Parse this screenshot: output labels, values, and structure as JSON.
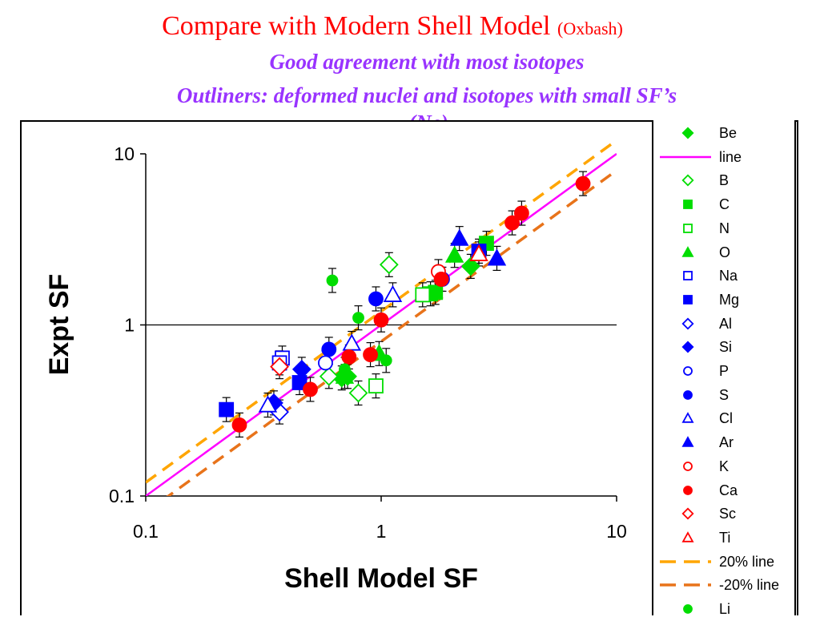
{
  "header": {
    "title": "Compare with Modern Shell Model",
    "title_small": "(Oxbash)",
    "sub1": "Good agreement with most isotopes",
    "sub2": "Outliners: deformed nuclei and isotopes with small SF’s",
    "sub3": "(Ne)"
  },
  "colors": {
    "title": "#ff0000",
    "subtitle": "#9933ff",
    "green": "#00dd00",
    "blue": "#0000ff",
    "red": "#ff0000",
    "line": "#ff00ff",
    "plus20": "#ffa500",
    "minus20": "#e8731a"
  },
  "chart_data": {
    "type": "scatter",
    "xscale": "log",
    "yscale": "log",
    "xlim": [
      0.1,
      10
    ],
    "ylim": [
      0.1,
      10
    ],
    "xlabel": "Shell Model SF",
    "ylabel": "Expt SF",
    "xticks": [
      "0.1",
      "1",
      "10"
    ],
    "yticks": [
      "0.1",
      "1",
      "10"
    ],
    "grid": "horizontal at 1",
    "legend_position": "right",
    "lines": [
      {
        "name": "line",
        "color": "#ff00ff",
        "dash": "none",
        "factor": 1.0
      },
      {
        "name": "20% line",
        "color": "#ffa500",
        "dash": "dashed",
        "factor": 1.2
      },
      {
        "name": "-20% line",
        "color": "#e8731a",
        "dash": "dashed",
        "factor": 0.8
      }
    ],
    "series": [
      {
        "name": "Be",
        "marker": "diamond",
        "filled": true,
        "color": "#00dd00",
        "points": [
          [
            0.72,
            0.5
          ],
          [
            0.68,
            0.49
          ],
          [
            2.4,
            2.2
          ]
        ]
      },
      {
        "name": "B",
        "marker": "diamond",
        "filled": false,
        "color": "#00dd00",
        "points": [
          [
            0.6,
            0.5
          ],
          [
            0.8,
            0.4
          ],
          [
            1.08,
            2.25
          ]
        ]
      },
      {
        "name": "C",
        "marker": "square",
        "filled": true,
        "color": "#00dd00",
        "points": [
          [
            1.7,
            1.55
          ],
          [
            2.8,
            3.0
          ],
          [
            1.62,
            1.52
          ]
        ]
      },
      {
        "name": "N",
        "marker": "square",
        "filled": false,
        "color": "#00dd00",
        "points": [
          [
            0.95,
            0.44
          ],
          [
            1.5,
            1.5
          ]
        ]
      },
      {
        "name": "O",
        "marker": "triangle",
        "filled": true,
        "color": "#00dd00",
        "points": [
          [
            0.7,
            0.5
          ],
          [
            0.98,
            0.68
          ],
          [
            2.05,
            2.55
          ]
        ]
      },
      {
        "name": "Na",
        "marker": "square",
        "filled": false,
        "color": "#0000ff",
        "points": [
          [
            0.38,
            0.64
          ],
          [
            0.37,
            0.6
          ]
        ]
      },
      {
        "name": "Mg",
        "marker": "square",
        "filled": true,
        "color": "#0000ff",
        "points": [
          [
            0.22,
            0.32
          ],
          [
            0.45,
            0.46
          ],
          [
            2.6,
            2.7
          ]
        ]
      },
      {
        "name": "Al",
        "marker": "diamond",
        "filled": false,
        "color": "#0000ff",
        "points": [
          [
            0.37,
            0.31
          ]
        ]
      },
      {
        "name": "Si",
        "marker": "diamond",
        "filled": true,
        "color": "#0000ff",
        "points": [
          [
            0.46,
            0.55
          ],
          [
            0.35,
            0.35
          ]
        ]
      },
      {
        "name": "P",
        "marker": "circle",
        "filled": false,
        "color": "#0000ff",
        "points": [
          [
            0.58,
            0.6
          ]
        ]
      },
      {
        "name": "S",
        "marker": "circle",
        "filled": true,
        "color": "#0000ff",
        "points": [
          [
            0.6,
            0.72
          ],
          [
            0.95,
            1.42
          ],
          [
            1.82,
            1.85
          ]
        ]
      },
      {
        "name": "Cl",
        "marker": "triangle",
        "filled": false,
        "color": "#0000ff",
        "points": [
          [
            0.33,
            0.34
          ],
          [
            0.75,
            0.78
          ],
          [
            1.12,
            1.5
          ]
        ]
      },
      {
        "name": "Ar",
        "marker": "triangle",
        "filled": true,
        "color": "#0000ff",
        "points": [
          [
            2.15,
            3.2
          ],
          [
            3.1,
            2.45
          ]
        ]
      },
      {
        "name": "K",
        "marker": "circle",
        "filled": false,
        "color": "#ff0000",
        "points": [
          [
            1.75,
            2.05
          ]
        ]
      },
      {
        "name": "Ca",
        "marker": "circle",
        "filled": true,
        "color": "#ff0000",
        "points": [
          [
            0.25,
            0.26
          ],
          [
            0.5,
            0.42
          ],
          [
            0.73,
            0.65
          ],
          [
            0.9,
            0.67
          ],
          [
            1.0,
            1.07
          ],
          [
            1.8,
            1.85
          ],
          [
            3.6,
            3.95
          ],
          [
            3.95,
            4.5
          ],
          [
            7.2,
            6.7
          ]
        ]
      },
      {
        "name": "Sc",
        "marker": "diamond",
        "filled": false,
        "color": "#ff0000",
        "points": [
          [
            0.37,
            0.57
          ]
        ]
      },
      {
        "name": "Ti",
        "marker": "triangle",
        "filled": false,
        "color": "#ff0000",
        "points": [
          [
            2.6,
            2.6
          ]
        ]
      },
      {
        "name": "Li",
        "marker": "circle",
        "filled": true,
        "color": "#00dd00",
        "points": [
          [
            0.62,
            1.82
          ],
          [
            0.8,
            1.1
          ],
          [
            1.05,
            0.62
          ],
          [
            0.7,
            0.55
          ]
        ]
      }
    ],
    "legend_items": [
      "Be",
      "line",
      "B",
      "C",
      "N",
      "O",
      "Na",
      "Mg",
      "Al",
      "Si",
      "P",
      "S",
      "Cl",
      "Ar",
      "K",
      "Ca",
      "Sc",
      "Ti",
      "20% line",
      "-20% line",
      "Li"
    ]
  }
}
